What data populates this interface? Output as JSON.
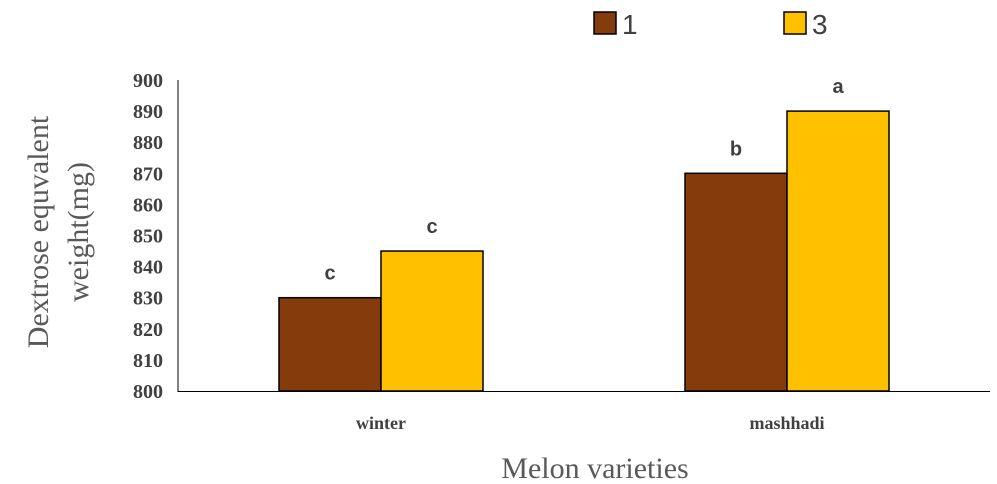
{
  "chart_data": {
    "type": "bar",
    "categories": [
      "winter",
      "mashhadi"
    ],
    "series": [
      {
        "name": "1",
        "values": [
          830,
          870
        ],
        "labels": [
          "c",
          "b"
        ],
        "color": "#843C0C"
      },
      {
        "name": "3",
        "values": [
          845,
          890
        ],
        "labels": [
          "c",
          "a"
        ],
        "color": "#FFC000"
      }
    ],
    "xlabel": "Melon varieties",
    "ylabel_lines": [
      "Dextrose equvalent",
      "weight(mg)"
    ],
    "ylim": [
      800,
      900
    ],
    "yticks": [
      800,
      810,
      820,
      830,
      840,
      850,
      860,
      870,
      880,
      890,
      900
    ],
    "legend_position": "top-right",
    "grid": false
  }
}
